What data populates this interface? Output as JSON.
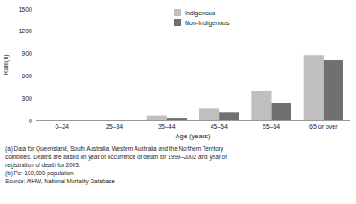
{
  "chart_data": {
    "type": "bar",
    "categories": [
      "0–24",
      "25–34",
      "35–44",
      "45–54",
      "55–64",
      "65 or over"
    ],
    "series": [
      {
        "name": "Indigenous",
        "color": "#c0bebe",
        "values": [
          2,
          2,
          65,
          165,
          400,
          880
        ]
      },
      {
        "name": "Non-Indigenous",
        "color": "#707070",
        "values": [
          2,
          2,
          35,
          105,
          230,
          810
        ]
      }
    ],
    "xlabel": "Age (years)",
    "ylabel": "Rate(b)",
    "ylim": [
      0,
      1500
    ],
    "yticks": [
      0,
      300,
      600,
      900,
      1200,
      1500
    ],
    "grid": false,
    "legend": "upper center",
    "annotations": [
      "(a) Data for Queensland, South Australia, Western Australia and the Northern Territory",
      "combined. Deaths are based on year of occurrence of death for 1999–2002 and year of",
      "registration of death for 2003.",
      "(b) Per 100,000 population.",
      "Source: AIHW, National Mortality Database"
    ]
  }
}
